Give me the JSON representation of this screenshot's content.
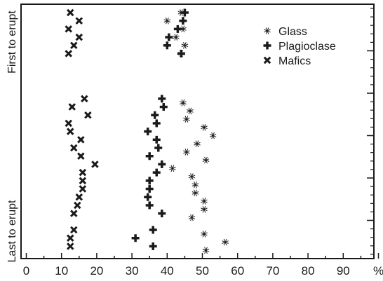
{
  "chart_data": {
    "type": "scatter",
    "x_unit": "%",
    "xlim": [
      0,
      100
    ],
    "x_ticks": [
      "0",
      "10",
      "20",
      "30",
      "40",
      "50",
      "60",
      "70",
      "80",
      "90",
      "%"
    ],
    "ylabel_top": "First to erupt",
    "ylabel_bottom": "Last to erupt",
    "grid": false,
    "legend_position": "top-right",
    "series": [
      {
        "name": "Glass",
        "marker": "asterisk",
        "points": [
          {
            "x": 44.0,
            "y": 1
          },
          {
            "x": 40.0,
            "y": 2
          },
          {
            "x": 44.5,
            "y": 3
          },
          {
            "x": 42.5,
            "y": 4
          },
          {
            "x": 45.0,
            "y": 5
          },
          {
            "x": 44.0,
            "y": 6
          },
          {
            "x": 44.5,
            "y": 12
          },
          {
            "x": 46.5,
            "y": 13
          },
          {
            "x": 45.5,
            "y": 14
          },
          {
            "x": 50.5,
            "y": 15
          },
          {
            "x": 53.0,
            "y": 16
          },
          {
            "x": 48.5,
            "y": 17
          },
          {
            "x": 45.5,
            "y": 18
          },
          {
            "x": 51.0,
            "y": 19
          },
          {
            "x": 41.5,
            "y": 20
          },
          {
            "x": 47.0,
            "y": 21
          },
          {
            "x": 48.0,
            "y": 22
          },
          {
            "x": 48.0,
            "y": 23
          },
          {
            "x": 50.5,
            "y": 24
          },
          {
            "x": 50.5,
            "y": 25
          },
          {
            "x": 47.0,
            "y": 26
          },
          {
            "x": 50.5,
            "y": 28
          },
          {
            "x": 56.5,
            "y": 29
          },
          {
            "x": 51.0,
            "y": 30
          }
        ]
      },
      {
        "name": "Plagioclase",
        "marker": "plus",
        "points": [
          {
            "x": 45.0,
            "y": 1
          },
          {
            "x": 44.5,
            "y": 2
          },
          {
            "x": 43.0,
            "y": 3
          },
          {
            "x": 40.5,
            "y": 4
          },
          {
            "x": 40.0,
            "y": 5
          },
          {
            "x": 44.0,
            "y": 6
          },
          {
            "x": 38.5,
            "y": 11.5
          },
          {
            "x": 39.0,
            "y": 12.5
          },
          {
            "x": 36.5,
            "y": 13.5
          },
          {
            "x": 37.0,
            "y": 14.5
          },
          {
            "x": 34.5,
            "y": 15.5
          },
          {
            "x": 37.0,
            "y": 16.5
          },
          {
            "x": 37.5,
            "y": 17.5
          },
          {
            "x": 35.0,
            "y": 18.5
          },
          {
            "x": 38.5,
            "y": 19.5
          },
          {
            "x": 37.0,
            "y": 20.5
          },
          {
            "x": 35.0,
            "y": 21.5
          },
          {
            "x": 35.0,
            "y": 22.5
          },
          {
            "x": 34.5,
            "y": 23.5
          },
          {
            "x": 35.0,
            "y": 24.5
          },
          {
            "x": 38.5,
            "y": 25.5
          },
          {
            "x": 36.0,
            "y": 27.5
          },
          {
            "x": 31.0,
            "y": 28.5
          },
          {
            "x": 36.0,
            "y": 29.5
          }
        ]
      },
      {
        "name": "Mafics",
        "marker": "cross",
        "points": [
          {
            "x": 12.5,
            "y": 1
          },
          {
            "x": 15.0,
            "y": 2
          },
          {
            "x": 12.0,
            "y": 3
          },
          {
            "x": 15.0,
            "y": 4
          },
          {
            "x": 13.5,
            "y": 5
          },
          {
            "x": 12.0,
            "y": 6
          },
          {
            "x": 16.5,
            "y": 11.5
          },
          {
            "x": 13.0,
            "y": 12.5
          },
          {
            "x": 17.5,
            "y": 13.5
          },
          {
            "x": 12.0,
            "y": 14.5
          },
          {
            "x": 12.5,
            "y": 15.5
          },
          {
            "x": 15.5,
            "y": 16.5
          },
          {
            "x": 13.5,
            "y": 17.5
          },
          {
            "x": 15.5,
            "y": 18.5
          },
          {
            "x": 19.5,
            "y": 19.5
          },
          {
            "x": 16.0,
            "y": 20.5
          },
          {
            "x": 16.0,
            "y": 21.5
          },
          {
            "x": 16.0,
            "y": 22.5
          },
          {
            "x": 15.0,
            "y": 23.5
          },
          {
            "x": 14.5,
            "y": 24.5
          },
          {
            "x": 13.5,
            "y": 25.5
          },
          {
            "x": 13.5,
            "y": 27.5
          },
          {
            "x": 12.5,
            "y": 28.5
          },
          {
            "x": 12.5,
            "y": 29.5
          }
        ]
      }
    ]
  }
}
